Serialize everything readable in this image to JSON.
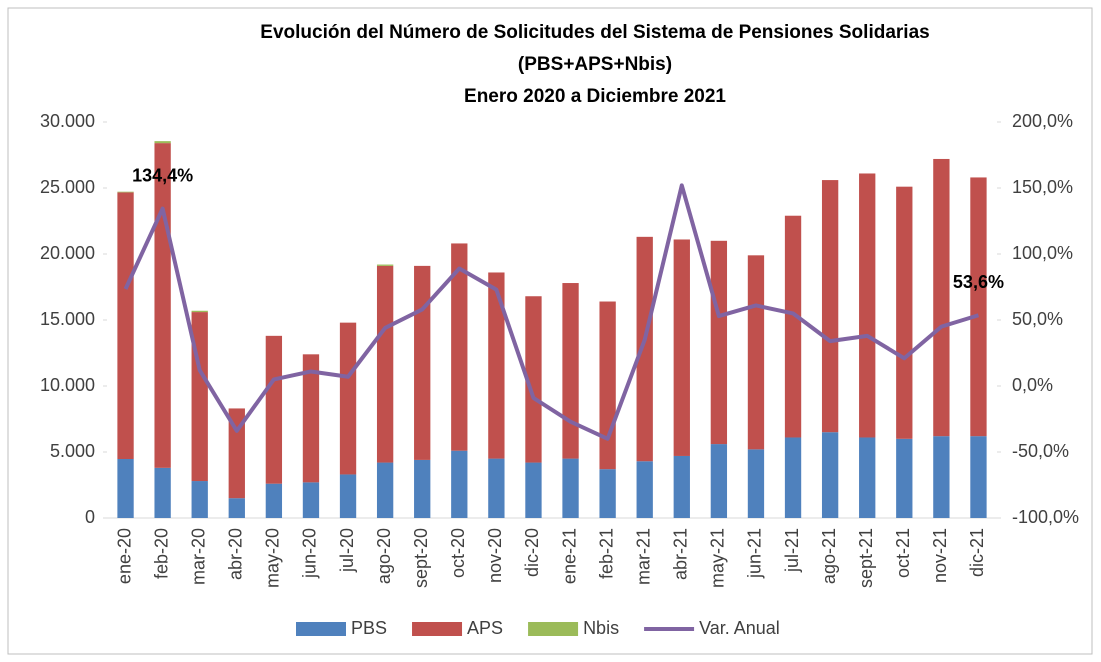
{
  "chart_data": {
    "type": "bar",
    "title": [
      "Evolución del Número de Solicitudes del Sistema de Pensiones Solidarias",
      "(PBS+APS+Nbis)",
      "Enero 2020 a Diciembre 2021"
    ],
    "stacked": true,
    "categories": [
      "ene-20",
      "feb-20",
      "mar-20",
      "abr-20",
      "may-20",
      "jun-20",
      "jul-20",
      "ago-20",
      "sept-20",
      "oct-20",
      "nov-20",
      "dic-20",
      "ene-21",
      "feb-21",
      "mar-21",
      "abr-21",
      "may-21",
      "jun-21",
      "jul-21",
      "ago-21",
      "sept-21",
      "oct-21",
      "nov-21",
      "dic-21"
    ],
    "series": [
      {
        "name": "PBS",
        "color": "#4f81bd",
        "type": "bar",
        "values": [
          4470,
          3800,
          2800,
          1500,
          2600,
          2700,
          3300,
          4200,
          4400,
          5100,
          4500,
          4200,
          4500,
          3700,
          4300,
          4700,
          5600,
          5200,
          6100,
          6500,
          6100,
          6000,
          6200,
          6200
        ]
      },
      {
        "name": "APS",
        "color": "#c0504d",
        "type": "bar",
        "values": [
          20200,
          24600,
          12800,
          6800,
          11200,
          9700,
          11500,
          14900,
          14700,
          15700,
          14100,
          12600,
          13300,
          12700,
          17000,
          16400,
          15400,
          14700,
          16800,
          19100,
          20000,
          19100,
          21000,
          19600
        ]
      },
      {
        "name": "Nbis",
        "color": "#9bbb59",
        "type": "bar",
        "values": [
          50,
          150,
          100,
          0,
          0,
          0,
          0,
          100,
          0,
          0,
          0,
          0,
          0,
          0,
          0,
          0,
          0,
          0,
          0,
          0,
          0,
          0,
          0,
          0
        ]
      },
      {
        "name": "Var. Anual",
        "color": "#8064a2",
        "type": "line",
        "axis": "y2",
        "values": [
          73.5,
          134.4,
          12,
          -34,
          5,
          11,
          7,
          44,
          58,
          89,
          73,
          -9,
          -27,
          -40,
          35,
          152,
          53,
          61,
          55,
          34,
          38,
          21,
          45,
          53.6
        ],
        "value_labels": [
          "134,4%",
          "53,6%"
        ],
        "value_label_index": [
          1,
          23
        ]
      }
    ],
    "ylim": [
      0,
      30000
    ],
    "yticks": [
      0,
      {
        "value": 5000,
        "label": "5.000"
      },
      {
        "value": 10000,
        "label": "10.000"
      },
      {
        "value": 15000,
        "label": "15.000"
      },
      {
        "value": 20000,
        "label": "20.000"
      },
      {
        "value": 25000,
        "label": "25.000"
      },
      {
        "value": 30000,
        "label": "30.000"
      }
    ],
    "y2lim": [
      -100,
      200
    ],
    "y2ticks": [
      {
        "value": -100,
        "label": "-100,0%"
      },
      {
        "value": -50,
        "label": "-50,0%"
      },
      {
        "value": 0,
        "label": "0,0%"
      },
      {
        "value": 50,
        "label": "50,0%"
      },
      {
        "value": 100,
        "label": "100,0%"
      },
      {
        "value": 150,
        "label": "150,0%"
      },
      {
        "value": 200,
        "label": "200,0%"
      }
    ],
    "legend": "bottom"
  }
}
